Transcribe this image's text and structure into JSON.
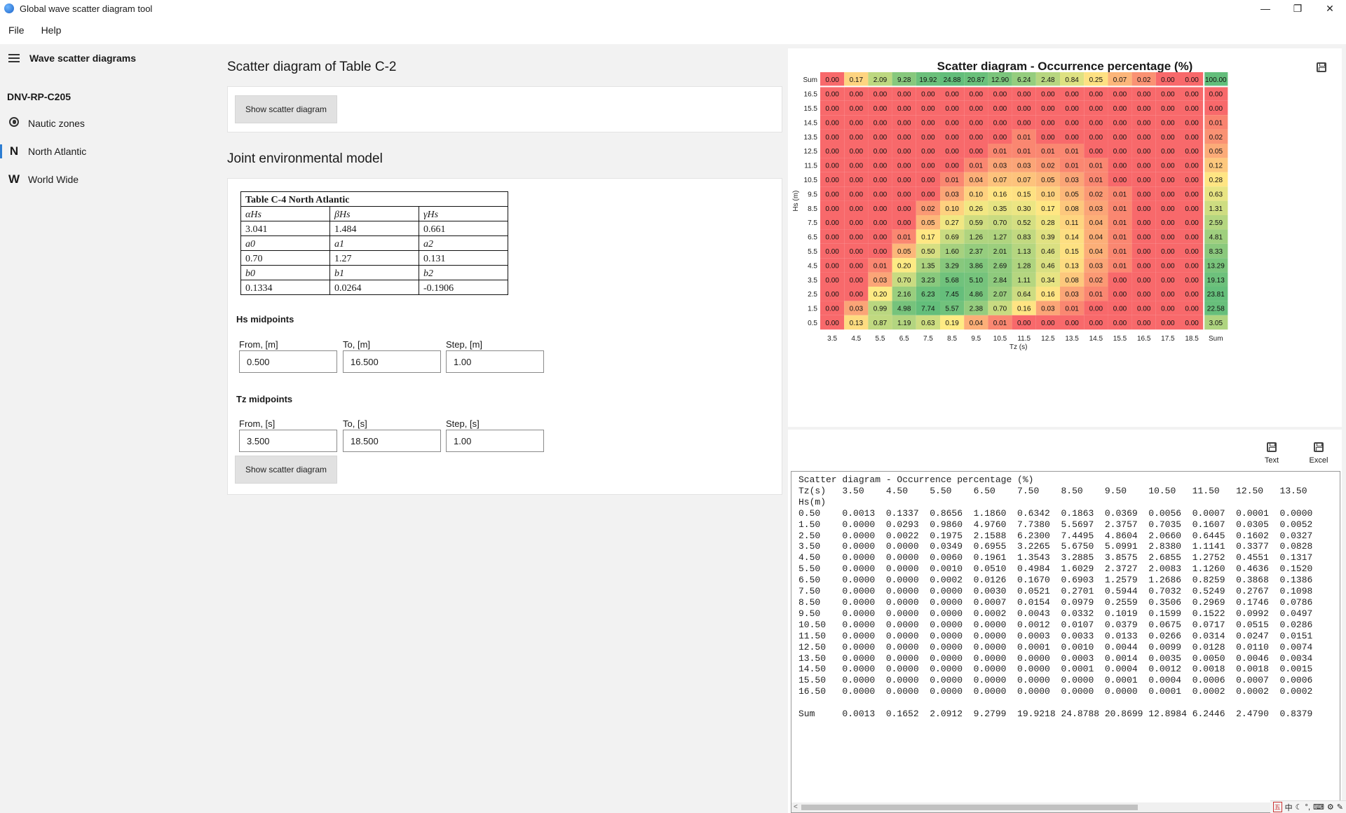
{
  "window": {
    "title": "Global wave scatter diagram tool",
    "minimize": "—",
    "maximize": "❐",
    "close": "✕"
  },
  "menu": [
    "File",
    "Help"
  ],
  "sidebar": {
    "title": "Wave scatter diagrams",
    "section": "DNV-RP-C205",
    "items": [
      {
        "icon": "globe-icon",
        "label": "Nautic zones"
      },
      {
        "icon": "N",
        "label": "North Atlantic"
      },
      {
        "icon": "W",
        "label": "World Wide"
      }
    ]
  },
  "main": {
    "scatter_title": "Scatter diagram of Table C-2",
    "show_button": "Show scatter diagram",
    "joint_title": "Joint environmental model",
    "table": {
      "caption": "Table C-4  North Atlantic",
      "rows": [
        [
          "αHs",
          "βHs",
          "γHs"
        ],
        [
          "3.041",
          "1.484",
          "0.661"
        ],
        [
          "a0",
          "a1",
          "a2"
        ],
        [
          "0.70",
          "1.27",
          "0.131"
        ],
        [
          "b0",
          "b1",
          "b2"
        ],
        [
          "0.1334",
          "0.0264",
          "-0.1906"
        ]
      ]
    },
    "hs": {
      "label": "Hs midpoints",
      "from_label": "From, [m]",
      "from": "0.500",
      "to_label": "To, [m]",
      "to": "16.500",
      "step_label": "Step, [m]",
      "step": "1.00"
    },
    "tz": {
      "label": "Tz midpoints",
      "from_label": "From, [s]",
      "from": "3.500",
      "to_label": "To, [s]",
      "to": "18.500",
      "step_label": "Step, [s]",
      "step": "1.00"
    },
    "show_button2": "Show scatter diagram"
  },
  "chart_data": {
    "type": "heatmap",
    "title": "Scatter diagram - Occurrence percentage (%)",
    "xlabel": "Tz (s)",
    "ylabel": "Hs (m)",
    "x_labels": [
      "3.5",
      "4.5",
      "5.5",
      "6.5",
      "7.5",
      "8.5",
      "9.5",
      "10.5",
      "11.5",
      "12.5",
      "13.5",
      "14.5",
      "15.5",
      "16.5",
      "17.5",
      "18.5",
      "Sum"
    ],
    "y_labels": [
      "Sum",
      "16.5",
      "15.5",
      "14.5",
      "13.5",
      "12.5",
      "11.5",
      "10.5",
      "9.5",
      "8.5",
      "7.5",
      "6.5",
      "5.5",
      "4.5",
      "3.5",
      "2.5",
      "1.5",
      "0.5"
    ],
    "cells": [
      [
        "0.00",
        "0.17",
        "2.09",
        "9.28",
        "19.92",
        "24.88",
        "20.87",
        "12.90",
        "6.24",
        "2.48",
        "0.84",
        "0.25",
        "0.07",
        "0.02",
        "0.00",
        "0.00",
        "100.00"
      ],
      [
        "0.00",
        "0.00",
        "0.00",
        "0.00",
        "0.00",
        "0.00",
        "0.00",
        "0.00",
        "0.00",
        "0.00",
        "0.00",
        "0.00",
        "0.00",
        "0.00",
        "0.00",
        "0.00",
        "0.00"
      ],
      [
        "0.00",
        "0.00",
        "0.00",
        "0.00",
        "0.00",
        "0.00",
        "0.00",
        "0.00",
        "0.00",
        "0.00",
        "0.00",
        "0.00",
        "0.00",
        "0.00",
        "0.00",
        "0.00",
        "0.00"
      ],
      [
        "0.00",
        "0.00",
        "0.00",
        "0.00",
        "0.00",
        "0.00",
        "0.00",
        "0.00",
        "0.00",
        "0.00",
        "0.00",
        "0.00",
        "0.00",
        "0.00",
        "0.00",
        "0.00",
        "0.01"
      ],
      [
        "0.00",
        "0.00",
        "0.00",
        "0.00",
        "0.00",
        "0.00",
        "0.00",
        "0.00",
        "0.01",
        "0.00",
        "0.00",
        "0.00",
        "0.00",
        "0.00",
        "0.00",
        "0.00",
        "0.02"
      ],
      [
        "0.00",
        "0.00",
        "0.00",
        "0.00",
        "0.00",
        "0.00",
        "0.00",
        "0.01",
        "0.01",
        "0.01",
        "0.01",
        "0.00",
        "0.00",
        "0.00",
        "0.00",
        "0.00",
        "0.05"
      ],
      [
        "0.00",
        "0.00",
        "0.00",
        "0.00",
        "0.00",
        "0.00",
        "0.01",
        "0.03",
        "0.03",
        "0.02",
        "0.01",
        "0.01",
        "0.00",
        "0.00",
        "0.00",
        "0.00",
        "0.12"
      ],
      [
        "0.00",
        "0.00",
        "0.00",
        "0.00",
        "0.00",
        "0.01",
        "0.04",
        "0.07",
        "0.07",
        "0.05",
        "0.03",
        "0.01",
        "0.00",
        "0.00",
        "0.00",
        "0.00",
        "0.28"
      ],
      [
        "0.00",
        "0.00",
        "0.00",
        "0.00",
        "0.00",
        "0.03",
        "0.10",
        "0.16",
        "0.15",
        "0.10",
        "0.05",
        "0.02",
        "0.01",
        "0.00",
        "0.00",
        "0.00",
        "0.63"
      ],
      [
        "0.00",
        "0.00",
        "0.00",
        "0.00",
        "0.02",
        "0.10",
        "0.26",
        "0.35",
        "0.30",
        "0.17",
        "0.08",
        "0.03",
        "0.01",
        "0.00",
        "0.00",
        "0.00",
        "1.31"
      ],
      [
        "0.00",
        "0.00",
        "0.00",
        "0.00",
        "0.05",
        "0.27",
        "0.59",
        "0.70",
        "0.52",
        "0.28",
        "0.11",
        "0.04",
        "0.01",
        "0.00",
        "0.00",
        "0.00",
        "2.59"
      ],
      [
        "0.00",
        "0.00",
        "0.00",
        "0.01",
        "0.17",
        "0.69",
        "1.26",
        "1.27",
        "0.83",
        "0.39",
        "0.14",
        "0.04",
        "0.01",
        "0.00",
        "0.00",
        "0.00",
        "4.81"
      ],
      [
        "0.00",
        "0.00",
        "0.00",
        "0.05",
        "0.50",
        "1.60",
        "2.37",
        "2.01",
        "1.13",
        "0.46",
        "0.15",
        "0.04",
        "0.01",
        "0.00",
        "0.00",
        "0.00",
        "8.33"
      ],
      [
        "0.00",
        "0.00",
        "0.01",
        "0.20",
        "1.35",
        "3.29",
        "3.86",
        "2.69",
        "1.28",
        "0.46",
        "0.13",
        "0.03",
        "0.01",
        "0.00",
        "0.00",
        "0.00",
        "13.29"
      ],
      [
        "0.00",
        "0.00",
        "0.03",
        "0.70",
        "3.23",
        "5.68",
        "5.10",
        "2.84",
        "1.11",
        "0.34",
        "0.08",
        "0.02",
        "0.00",
        "0.00",
        "0.00",
        "0.00",
        "19.13"
      ],
      [
        "0.00",
        "0.00",
        "0.20",
        "2.16",
        "6.23",
        "7.45",
        "4.86",
        "2.07",
        "0.64",
        "0.16",
        "0.03",
        "0.01",
        "0.00",
        "0.00",
        "0.00",
        "0.00",
        "23.81"
      ],
      [
        "0.00",
        "0.03",
        "0.99",
        "4.98",
        "7.74",
        "5.57",
        "2.38",
        "0.70",
        "0.16",
        "0.03",
        "0.01",
        "0.00",
        "0.00",
        "0.00",
        "0.00",
        "0.00",
        "22.58"
      ],
      [
        "0.00",
        "0.13",
        "0.87",
        "1.19",
        "0.63",
        "0.19",
        "0.04",
        "0.01",
        "0.00",
        "0.00",
        "0.00",
        "0.00",
        "0.00",
        "0.00",
        "0.00",
        "0.00",
        "3.05"
      ]
    ],
    "colors": {
      "low": "#f8696b",
      "mid": "#ffeb84",
      "high": "#63be7b"
    }
  },
  "text_panel": {
    "text_label": "Text",
    "excel_label": "Excel",
    "content": "Scatter diagram - Occurrence percentage (%)\nTz(s)   3.50    4.50    5.50    6.50    7.50    8.50    9.50    10.50   11.50   12.50   13.50\nHs(m)\n0.50    0.0013  0.1337  0.8656  1.1860  0.6342  0.1863  0.0369  0.0056  0.0007  0.0001  0.0000\n1.50    0.0000  0.0293  0.9860  4.9760  7.7380  5.5697  2.3757  0.7035  0.1607  0.0305  0.0052\n2.50    0.0000  0.0022  0.1975  2.1588  6.2300  7.4495  4.8604  2.0660  0.6445  0.1602  0.0327\n3.50    0.0000  0.0000  0.0349  0.6955  3.2265  5.6750  5.0991  2.8380  1.1141  0.3377  0.0828\n4.50    0.0000  0.0000  0.0060  0.1961  1.3543  3.2885  3.8575  2.6855  1.2752  0.4551  0.1317\n5.50    0.0000  0.0000  0.0010  0.0510  0.4984  1.6029  2.3727  2.0083  1.1260  0.4636  0.1520\n6.50    0.0000  0.0000  0.0002  0.0126  0.1670  0.6903  1.2579  1.2686  0.8259  0.3868  0.1386\n7.50    0.0000  0.0000  0.0000  0.0030  0.0521  0.2701  0.5944  0.7032  0.5249  0.2767  0.1098\n8.50    0.0000  0.0000  0.0000  0.0007  0.0154  0.0979  0.2559  0.3506  0.2969  0.1746  0.0786\n9.50    0.0000  0.0000  0.0000  0.0002  0.0043  0.0332  0.1019  0.1599  0.1522  0.0992  0.0497\n10.50   0.0000  0.0000  0.0000  0.0000  0.0012  0.0107  0.0379  0.0675  0.0717  0.0515  0.0286\n11.50   0.0000  0.0000  0.0000  0.0000  0.0003  0.0033  0.0133  0.0266  0.0314  0.0247  0.0151\n12.50   0.0000  0.0000  0.0000  0.0000  0.0001  0.0010  0.0044  0.0099  0.0128  0.0110  0.0074\n13.50   0.0000  0.0000  0.0000  0.0000  0.0000  0.0003  0.0014  0.0035  0.0050  0.0046  0.0034\n14.50   0.0000  0.0000  0.0000  0.0000  0.0000  0.0001  0.0004  0.0012  0.0018  0.0018  0.0015\n15.50   0.0000  0.0000  0.0000  0.0000  0.0000  0.0000  0.0001  0.0004  0.0006  0.0007  0.0006\n16.50   0.0000  0.0000  0.0000  0.0000  0.0000  0.0000  0.0000  0.0001  0.0002  0.0002  0.0002\n\nSum     0.0013  0.1652  2.0912  9.2799  19.9218 24.8788 20.8699 12.8984 6.2446  2.4790  0.8379"
  },
  "tray": [
    "中",
    "☾",
    "°,",
    "⌨",
    "⚙",
    "✎"
  ]
}
